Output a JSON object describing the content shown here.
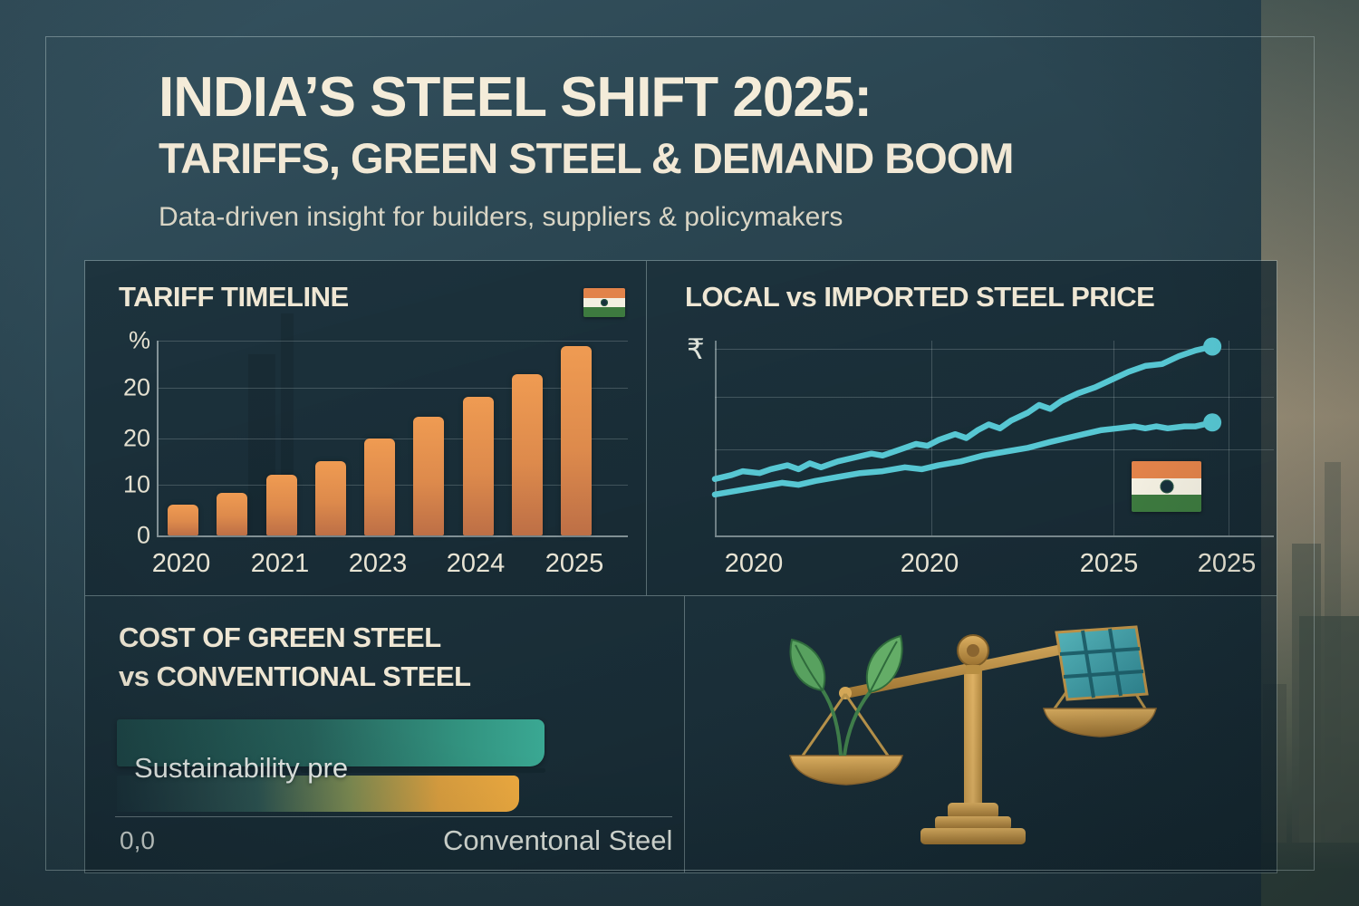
{
  "header": {
    "title_line1": "INDIA’S STEEL SHIFT 2025:",
    "title_line2": "TARIFFS, GREEN STEEL & DEMAND BOOM",
    "subtitle": "Data-driven insight for builders, suppliers & policymakers"
  },
  "tariff_panel": {
    "title": "TARIFF TIMELINE",
    "flag_icon": "india-flag",
    "y_axis_unit": "%"
  },
  "price_panel": {
    "title": "LOCAL vs IMPORTED STEEL PRICE",
    "y_axis_unit": "₹",
    "flag_icon": "india-flag"
  },
  "green_panel": {
    "title_line1": "COST OF GREEN STEEL",
    "title_line2": "vs CONVENTIONAL STEEL",
    "bar_label_overlay": "Sustainability pre",
    "origin_label": "0,0",
    "x_label": "Conventonal Steel"
  },
  "scale_panel": {
    "illustration": "balance-scale",
    "left_pan_icon": "green-leaves",
    "right_pan_icon": "solar-panel"
  },
  "colors": {
    "bar_orange_top": "#ef9b52",
    "bar_orange_bottom": "#bd6f46",
    "line_teal": "#57c7d3",
    "green_bar_teal": "#3aa893",
    "conventional_amber": "#eca93f",
    "cream_text": "#f4ecd9",
    "panel_bg": "#1a2c35",
    "gold": "#d9ad5c"
  },
  "chart_data": [
    {
      "type": "bar",
      "title": "TARIFF TIMELINE",
      "ylabel": "%",
      "y_ticks": [
        "%",
        "20",
        "20",
        "10",
        "0"
      ],
      "categories": [
        "2020",
        "2021",
        "2023",
        "2024",
        "2025"
      ],
      "bar_count": 9,
      "values_est": [
        5,
        7,
        10,
        12,
        16,
        20,
        23,
        27,
        31
      ],
      "heights_pct": [
        16,
        22,
        31,
        38,
        50,
        61,
        71,
        83,
        97
      ],
      "grid": true,
      "legend": "none"
    },
    {
      "type": "line",
      "title": "LOCAL vs IMPORTED STEEL PRICE",
      "ylabel": "₹",
      "x_ticks": [
        "2020",
        "2020",
        "2025",
        "2025"
      ],
      "line_color": "#57c7d3",
      "grid": true,
      "legend": "none",
      "series": [
        {
          "name": "upper-line-rising-price",
          "end_marker": true,
          "points_pct": [
            [
              0,
              71
            ],
            [
              3,
              69
            ],
            [
              5,
              67
            ],
            [
              8,
              68
            ],
            [
              10,
              66
            ],
            [
              13,
              64
            ],
            [
              15,
              66
            ],
            [
              17,
              63
            ],
            [
              19,
              65
            ],
            [
              22,
              62
            ],
            [
              25,
              60
            ],
            [
              28,
              58
            ],
            [
              30,
              59
            ],
            [
              33,
              56
            ],
            [
              36,
              53
            ],
            [
              38,
              54
            ],
            [
              40,
              51
            ],
            [
              43,
              48
            ],
            [
              45,
              50
            ],
            [
              47,
              46
            ],
            [
              49,
              43
            ],
            [
              51,
              45
            ],
            [
              53,
              41
            ],
            [
              56,
              37
            ],
            [
              58,
              33
            ],
            [
              60,
              35
            ],
            [
              62,
              31
            ],
            [
              65,
              27
            ],
            [
              68,
              24
            ],
            [
              71,
              20
            ],
            [
              74,
              16
            ],
            [
              77,
              13
            ],
            [
              80,
              12
            ],
            [
              83,
              8
            ],
            [
              86,
              5
            ],
            [
              89,
              3
            ]
          ]
        },
        {
          "name": "lower-line-steady-price",
          "end_marker": true,
          "points_pct": [
            [
              0,
              79
            ],
            [
              4,
              77
            ],
            [
              8,
              75
            ],
            [
              12,
              73
            ],
            [
              15,
              74
            ],
            [
              18,
              72
            ],
            [
              22,
              70
            ],
            [
              26,
              68
            ],
            [
              30,
              67
            ],
            [
              34,
              65
            ],
            [
              37,
              66
            ],
            [
              40,
              64
            ],
            [
              44,
              62
            ],
            [
              48,
              59
            ],
            [
              52,
              57
            ],
            [
              56,
              55
            ],
            [
              60,
              52
            ],
            [
              63,
              50
            ],
            [
              66,
              48
            ],
            [
              69,
              46
            ],
            [
              72,
              45
            ],
            [
              75,
              44
            ],
            [
              77,
              45
            ],
            [
              79,
              44
            ],
            [
              81,
              45
            ],
            [
              84,
              44
            ],
            [
              86,
              44
            ],
            [
              89,
              42
            ]
          ]
        }
      ]
    },
    {
      "type": "bar-horizontal",
      "title": "COST OF GREEN STEEL vs CONVENTIONAL STEEL",
      "categories": [
        "Sustainability pre",
        "Conventonal Steel"
      ],
      "lengths_pct": [
        100,
        94
      ],
      "origin_label": "0,0",
      "legend": "none"
    }
  ]
}
